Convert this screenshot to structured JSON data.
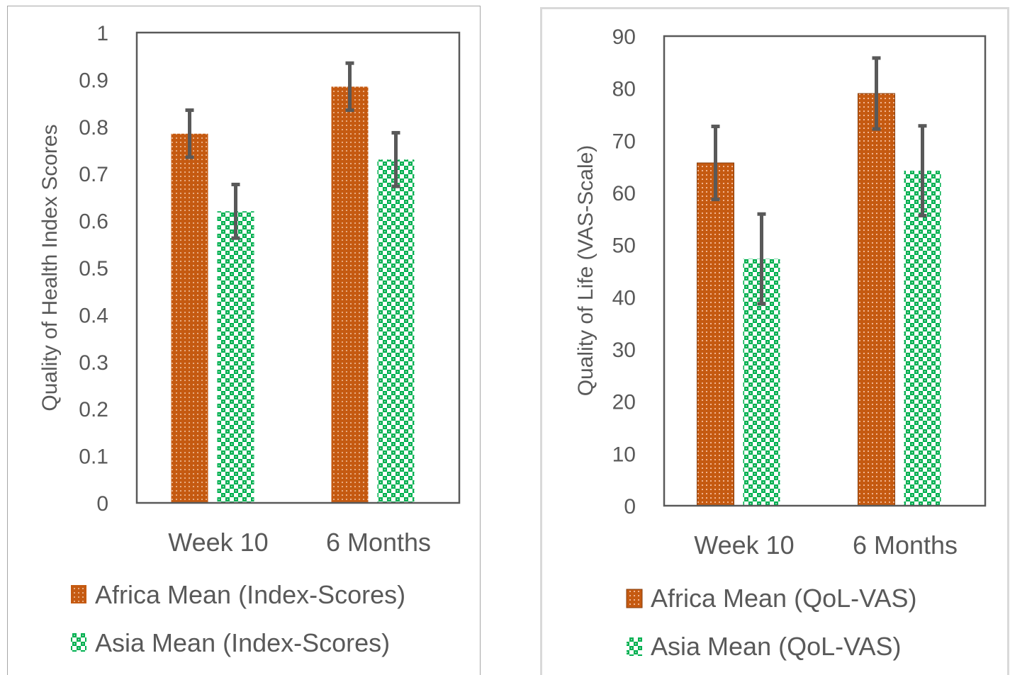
{
  "colors": {
    "africa": "#c55a11",
    "asia": "#00b050",
    "error_bar": "#595959",
    "frame": "#595959",
    "text": "#595959"
  },
  "chart_data": [
    {
      "type": "bar",
      "categories": [
        "Week 10",
        "6 Months"
      ],
      "ylabel": "Quality of Health Index Scores",
      "ylim": [
        0,
        1
      ],
      "yticks": [
        "0",
        "0.1",
        "0.2",
        "0.3",
        "0.4",
        "0.5",
        "0.6",
        "0.7",
        "0.8",
        "0.9",
        "1"
      ],
      "legend_position": "bottom",
      "series": [
        {
          "name": "Africa Mean (Index-Scores)",
          "values": [
            0.785,
            0.885
          ],
          "error": [
            0.05,
            0.05
          ],
          "pattern": "dots-orange"
        },
        {
          "name": "Asia Mean (Index-Scores)",
          "values": [
            0.62,
            0.73
          ],
          "error": [
            0.057,
            0.057
          ],
          "pattern": "checker-green"
        }
      ]
    },
    {
      "type": "bar",
      "categories": [
        "Week 10",
        "6 Months"
      ],
      "ylabel": "Quality of Life (VAS-Scale)",
      "ylim": [
        0,
        90
      ],
      "yticks": [
        "0",
        "10",
        "20",
        "30",
        "40",
        "50",
        "60",
        "70",
        "80",
        "90"
      ],
      "legend_position": "bottom",
      "series": [
        {
          "name": "Africa Mean (QoL-VAS)",
          "values": [
            65.7,
            79
          ],
          "error": [
            7,
            6.8
          ],
          "pattern": "grid-orange"
        },
        {
          "name": "Asia Mean (QoL-VAS)",
          "values": [
            47.3,
            64.2
          ],
          "error": [
            8.6,
            8.6
          ],
          "pattern": "checker-green"
        }
      ]
    }
  ]
}
